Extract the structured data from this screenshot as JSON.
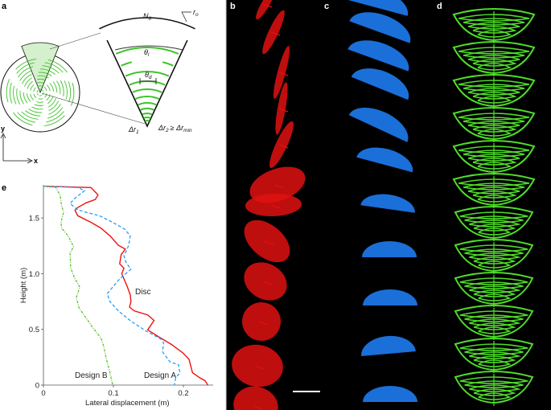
{
  "panel_labels": {
    "a": "a",
    "b": "b",
    "c": "c",
    "d": "d",
    "e": "e"
  },
  "diagram": {
    "n_theta": "N",
    "n_theta_sub": "θ",
    "r_o": "r",
    "r_o_sub": "o",
    "theta_l": "θ",
    "theta_l_sub": "l",
    "theta_d": "θ",
    "theta_d_sub": "d",
    "dr1": "Δr",
    "dr1_sub": "1",
    "dr2": "Δr",
    "dr2_sub": "2",
    "dr2_rel": "≥ Δr",
    "dr2_rel_sub": "min",
    "axis_x": "x",
    "axis_y": "y",
    "colors": {
      "pattern": "#3ec42a",
      "fill": "#d4f0cc",
      "outline": "#111111"
    }
  },
  "photos": {
    "b": {
      "color": "#e01010",
      "background": "#000000"
    },
    "c": {
      "color": "#1e7bf0",
      "background": "#000000"
    },
    "d": {
      "color": "#4fdc2a",
      "background": "#000000"
    }
  },
  "chart_data": {
    "type": "line",
    "title": "",
    "xlabel": "Lateral displacement (m)",
    "ylabel": "Height (m)",
    "xlim": [
      0,
      0.24
    ],
    "ylim": [
      0,
      1.8
    ],
    "xticks": [
      "0",
      "0.1",
      "0.2"
    ],
    "xtick_values": [
      0,
      0.1,
      0.2
    ],
    "yticks": [
      "0",
      "0.5",
      "1.0",
      "1.5"
    ],
    "ytick_values": [
      0,
      0.5,
      1.0,
      1.5
    ],
    "grid": false,
    "annotations": [
      {
        "text": "Disc",
        "series": "Disc"
      },
      {
        "text": "Design A",
        "series": "Design A"
      },
      {
        "text": "Design B",
        "series": "Design B"
      }
    ],
    "series": [
      {
        "name": "Disc",
        "color": "#ee1111",
        "style": "solid",
        "points": [
          [
            0,
            1.785
          ],
          [
            0.068,
            1.773
          ],
          [
            0.078,
            1.706
          ],
          [
            0.074,
            1.665
          ],
          [
            0.061,
            1.636
          ],
          [
            0.049,
            1.593
          ],
          [
            0.045,
            1.569
          ],
          [
            0.049,
            1.52
          ],
          [
            0.068,
            1.46
          ],
          [
            0.082,
            1.41
          ],
          [
            0.095,
            1.34
          ],
          [
            0.107,
            1.255
          ],
          [
            0.117,
            1.22
          ],
          [
            0.111,
            1.17
          ],
          [
            0.109,
            1.087
          ],
          [
            0.115,
            1.05
          ],
          [
            0.112,
            1.0
          ],
          [
            0.12,
            0.88
          ],
          [
            0.124,
            0.81
          ],
          [
            0.125,
            0.75
          ],
          [
            0.123,
            0.7
          ],
          [
            0.13,
            0.665
          ],
          [
            0.149,
            0.63
          ],
          [
            0.158,
            0.58
          ],
          [
            0.149,
            0.496
          ],
          [
            0.164,
            0.436
          ],
          [
            0.183,
            0.364
          ],
          [
            0.199,
            0.29
          ],
          [
            0.208,
            0.231
          ],
          [
            0.21,
            0.183
          ],
          [
            0.213,
            0.111
          ],
          [
            0.224,
            0.063
          ],
          [
            0.231,
            0.039
          ],
          [
            0.235,
            0
          ]
        ]
      },
      {
        "name": "Design A",
        "color": "#2a9df4",
        "style": "dashed",
        "points": [
          [
            0,
            1.785
          ],
          [
            0.049,
            1.773
          ],
          [
            0.059,
            1.745
          ],
          [
            0.045,
            1.677
          ],
          [
            0.038,
            1.63
          ],
          [
            0.047,
            1.58
          ],
          [
            0.057,
            1.557
          ],
          [
            0.08,
            1.52
          ],
          [
            0.099,
            1.46
          ],
          [
            0.116,
            1.4
          ],
          [
            0.124,
            1.34
          ],
          [
            0.122,
            1.255
          ],
          [
            0.115,
            1.16
          ],
          [
            0.118,
            1.1
          ],
          [
            0.125,
            1.04
          ],
          [
            0.109,
            0.954
          ],
          [
            0.101,
            0.894
          ],
          [
            0.091,
            0.82
          ],
          [
            0.095,
            0.75
          ],
          [
            0.107,
            0.665
          ],
          [
            0.126,
            0.569
          ],
          [
            0.147,
            0.484
          ],
          [
            0.168,
            0.412
          ],
          [
            0.172,
            0.376
          ],
          [
            0.17,
            0.3
          ],
          [
            0.181,
            0.207
          ],
          [
            0.193,
            0.183
          ],
          [
            0.195,
            0.111
          ],
          [
            0.189,
            0.063
          ],
          [
            0.187,
            0
          ]
        ]
      },
      {
        "name": "Design B",
        "color": "#5cc02a",
        "style": "dash-dot",
        "points": [
          [
            0,
            1.785
          ],
          [
            0.018,
            1.773
          ],
          [
            0.024,
            1.7
          ],
          [
            0.026,
            1.605
          ],
          [
            0.029,
            1.557
          ],
          [
            0.025,
            1.46
          ],
          [
            0.026,
            1.41
          ],
          [
            0.035,
            1.34
          ],
          [
            0.043,
            1.243
          ],
          [
            0.038,
            1.183
          ],
          [
            0.039,
            1.05
          ],
          [
            0.045,
            0.954
          ],
          [
            0.052,
            0.88
          ],
          [
            0.047,
            0.786
          ],
          [
            0.051,
            0.69
          ],
          [
            0.062,
            0.593
          ],
          [
            0.07,
            0.52
          ],
          [
            0.082,
            0.424
          ],
          [
            0.086,
            0.352
          ],
          [
            0.09,
            0.231
          ],
          [
            0.095,
            0.111
          ],
          [
            0.099,
            0
          ]
        ]
      }
    ]
  }
}
